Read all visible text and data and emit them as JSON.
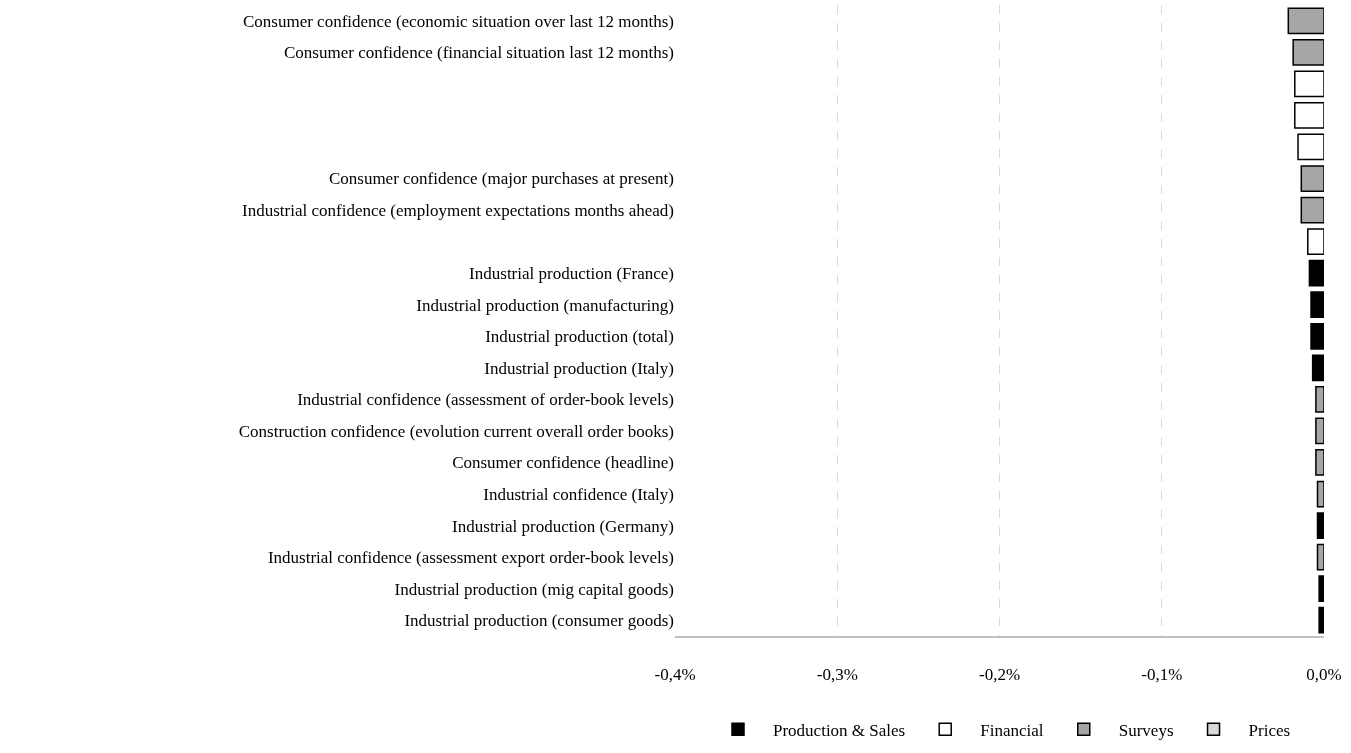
{
  "chart_data": {
    "type": "bar",
    "orientation": "horizontal",
    "categories": [
      "Consumer confidence (economic situation over last 12 months)",
      "Consumer confidence (financial situation last 12 months)",
      null,
      null,
      null,
      "Consumer confidence (major purchases at present)",
      "Industrial confidence (employment expectations months ahead)",
      null,
      "Industrial production (France)",
      "Industrial production (manufacturing)",
      "Industrial production (total)",
      "Industrial production (Italy)",
      "Industrial confidence (assessment of order-book levels)",
      "Construction confidence (evolution current overall order books)",
      "Consumer confidence (headline)",
      "Industrial confidence (Italy)",
      "Industrial production (Germany)",
      "Industrial confidence (assessment export order-book levels)",
      "Industrial production (mig capital goods)",
      "Industrial production (consumer goods)"
    ],
    "series": [
      {
        "name": "Production & Sales",
        "color": "#000000",
        "values": [
          null,
          null,
          null,
          null,
          null,
          null,
          null,
          null,
          -0.009,
          -0.008,
          -0.008,
          -0.007,
          null,
          null,
          null,
          null,
          -0.004,
          null,
          -0.003,
          -0.003
        ]
      },
      {
        "name": "Financial",
        "color": "#ffffff",
        "values": [
          null,
          null,
          -0.018,
          -0.018,
          -0.016,
          null,
          null,
          -0.01,
          null,
          null,
          null,
          null,
          null,
          null,
          null,
          null,
          null,
          null,
          null,
          null
        ]
      },
      {
        "name": "Surveys",
        "color": "#a6a6a6",
        "values": [
          -0.022,
          -0.019,
          null,
          null,
          null,
          -0.014,
          -0.014,
          null,
          null,
          null,
          null,
          null,
          -0.005,
          -0.005,
          -0.005,
          -0.004,
          null,
          -0.004,
          null,
          null
        ]
      },
      {
        "name": "Prices",
        "color": "#d9d9d9",
        "values": [
          null,
          null,
          null,
          null,
          null,
          null,
          null,
          null,
          null,
          null,
          null,
          null,
          null,
          null,
          null,
          null,
          null,
          null,
          null,
          null
        ]
      }
    ],
    "xlim": [
      -0.4,
      0
    ],
    "xticks": [
      {
        "value": -0.4,
        "label": "-0,4%"
      },
      {
        "value": -0.3,
        "label": "-0,3%"
      },
      {
        "value": -0.2,
        "label": "-0,2%"
      },
      {
        "value": -0.1,
        "label": "-0,1%"
      },
      {
        "value": 0,
        "label": "0,0%"
      }
    ],
    "grid": "x",
    "legend": "bottom"
  }
}
